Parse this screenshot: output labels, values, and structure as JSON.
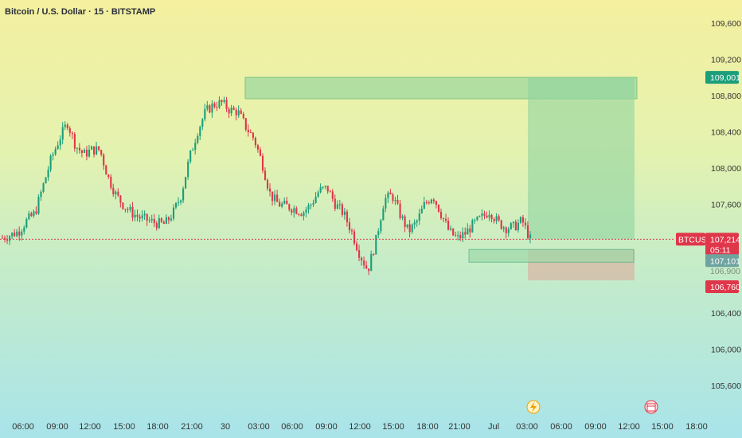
{
  "header": {
    "title": "Bitcoin / U.S. Dollar · 15 · BITSTAMP"
  },
  "colors": {
    "up": "#1b9e7a",
    "down": "#e0364a",
    "box": "#8fd19a",
    "target": "#4caf7d",
    "stop": "#d9b7a7"
  },
  "icons": [
    "lightning-event-icon",
    "calendar-event-icon"
  ],
  "chart_data": {
    "type": "candlestick",
    "symbol": "BTCUSD",
    "interval": "15",
    "exchange": "BITSTAMP",
    "y_ticks": [
      109600,
      109200,
      108800,
      108400,
      108000,
      107600,
      106400,
      106000,
      105600
    ],
    "x_ticks": [
      "06:00",
      "09:00",
      "12:00",
      "15:00",
      "18:00",
      "21:00",
      "30",
      "03:00",
      "06:00",
      "09:00",
      "12:00",
      "15:00",
      "18:00",
      "21:00",
      "Jul",
      "03:00",
      "06:00",
      "09:00",
      "12:00",
      "15:00",
      "18:00"
    ],
    "ylim": [
      105400,
      109800
    ],
    "price_series": [
      107230,
      107260,
      107300,
      107420,
      107500,
      107800,
      108100,
      108320,
      108500,
      108250,
      108150,
      108200,
      108200,
      107900,
      107700,
      107580,
      107500,
      107450,
      107420,
      107390,
      107380,
      107500,
      107700,
      108100,
      108400,
      108620,
      108700,
      108720,
      108640,
      108620,
      108450,
      108320,
      108050,
      107700,
      107600,
      107580,
      107550,
      107510,
      107600,
      107750,
      107780,
      107600,
      107500,
      107300,
      107050,
      106870,
      107200,
      107650,
      107700,
      107480,
      107300,
      107400,
      107600,
      107700,
      107500,
      107300,
      107220,
      107280,
      107380,
      107450,
      107530,
      107400,
      107340,
      107350,
      107420,
      107214
    ],
    "price_labels": {
      "target": "109,001",
      "current": "107,214",
      "countdown": "05:11",
      "entry": "107,101",
      "stop": "106,760",
      "symbol": "BTCUSD",
      "hidden": "106,900"
    }
  }
}
